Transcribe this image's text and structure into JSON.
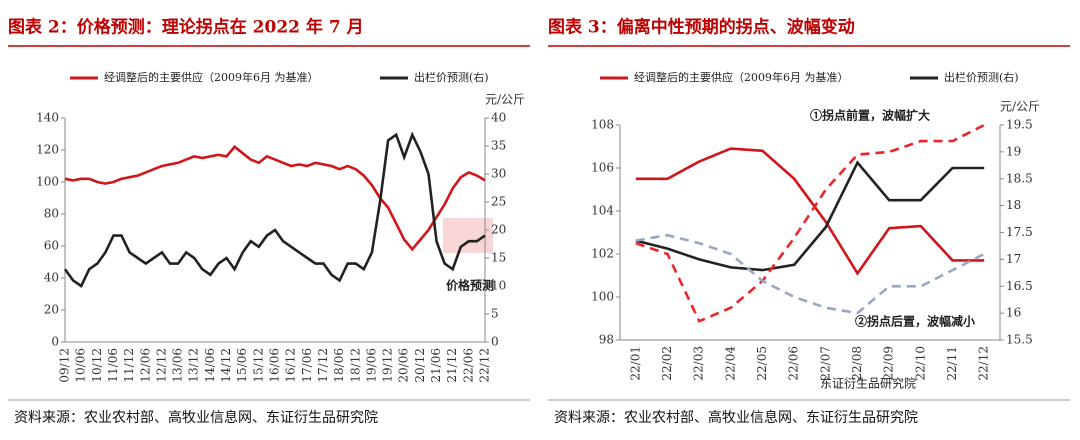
{
  "chart_data": [
    {
      "type": "line",
      "title": "图表 2：价格预测：理论拐点在 2022 年 7 月",
      "y2label": "元/公斤",
      "annotation": "价格预测",
      "source": "资料来源：农业农村部、高牧业信息网、东证衍生品研究院",
      "categories": [
        "09/12",
        null,
        "10/06",
        null,
        "10/12",
        null,
        "11/06",
        null,
        "11/12",
        null,
        "12/06",
        null,
        "12/12",
        null,
        "13/06",
        null,
        "13/12",
        null,
        "14/06",
        null,
        "14/12",
        null,
        "15/06",
        null,
        "15/12",
        null,
        "16/06",
        null,
        "16/12",
        null,
        "17/06",
        null,
        "17/12",
        null,
        "18/06",
        null,
        "18/12",
        null,
        "19/06",
        null,
        "19/12",
        null,
        "20/06",
        null,
        "20/12",
        null,
        "21/06",
        null,
        "21/12",
        null,
        "22/06",
        null,
        "22/12"
      ],
      "series": [
        {
          "name": "经调整后的主要供应（2009年6月 为基准）",
          "color": "#d0161b",
          "values": [
            102,
            101,
            102,
            102,
            100,
            99,
            100,
            102,
            103,
            104,
            106,
            108,
            110,
            111,
            112,
            114,
            116,
            115,
            116,
            117,
            116,
            122,
            118,
            114,
            112,
            116,
            114,
            112,
            110,
            111,
            110,
            112,
            111,
            110,
            108,
            110,
            108,
            104,
            98,
            90,
            84,
            74,
            64,
            58,
            64,
            70,
            78,
            86,
            96,
            103,
            106,
            104,
            101
          ]
        },
        {
          "name": "出栏价预测(右)",
          "color": "#222222",
          "axis": "y2",
          "values": [
            13,
            11,
            10,
            13,
            14,
            16,
            19,
            19,
            16,
            15,
            14,
            15,
            16,
            14,
            14,
            16,
            15,
            13,
            12,
            14,
            15,
            13,
            16,
            18,
            17,
            19,
            20,
            18,
            17,
            16,
            15,
            14,
            14,
            12,
            11,
            14,
            14,
            13,
            16,
            25,
            36,
            37,
            33,
            37,
            34,
            30,
            18,
            14,
            13,
            17,
            18,
            18,
            19
          ]
        }
      ],
      "ylim": [
        0,
        140
      ],
      "yticks": [
        0,
        20,
        40,
        60,
        80,
        100,
        120,
        140
      ],
      "y2lim": [
        0,
        40
      ],
      "y2ticks": [
        0,
        5,
        10,
        15,
        20,
        25,
        30,
        35,
        40
      ]
    },
    {
      "type": "line",
      "title": "图表 3：偏离中性预期的拐点、波幅变动",
      "y2label": "元/公斤",
      "annotations": [
        "①拐点前置，波幅扩大",
        "②拐点后置，波幅减小"
      ],
      "source": "资料来源：农业农村部、高牧业信息网、东证衍生品研究院",
      "watermark": "东证衍生品研究院",
      "categories": [
        "22/01",
        "22/02",
        "22/03",
        "22/04",
        "22/05",
        "22/06",
        "22/07",
        "22/08",
        "22/09",
        "22/10",
        "22/11",
        "22/12"
      ],
      "series": [
        {
          "name": "经调整后的主要供应（2009年6月 为基准）",
          "color": "#d0161b",
          "values": [
            105.5,
            105.5,
            106.3,
            106.9,
            106.8,
            105.5,
            103.5,
            101.1,
            103.2,
            103.3,
            101.7,
            101.7
          ]
        },
        {
          "name": "出栏价预测(右)",
          "color": "#222222",
          "axis": "y2",
          "values": [
            17.35,
            17.2,
            17.0,
            16.85,
            16.8,
            16.9,
            17.6,
            18.8,
            18.1,
            18.1,
            18.7,
            18.7
          ]
        },
        {
          "color": "#e8262b",
          "axis": "y2",
          "style": "dashed",
          "values": [
            17.3,
            17.1,
            15.85,
            16.1,
            16.6,
            17.4,
            18.3,
            18.95,
            19.0,
            19.2,
            19.2,
            19.5
          ]
        },
        {
          "color": "#9aa7c2",
          "axis": "y2",
          "style": "dashed",
          "values": [
            17.35,
            17.45,
            17.3,
            17.1,
            16.6,
            16.3,
            16.1,
            16.0,
            16.5,
            16.5,
            16.8,
            17.1
          ]
        }
      ],
      "ylim": [
        98,
        108
      ],
      "yticks": [
        98,
        100,
        102,
        104,
        106,
        108
      ],
      "y2lim": [
        15.5,
        19.5
      ],
      "y2ticks": [
        15.5,
        16,
        16.5,
        17,
        17.5,
        18,
        18.5,
        19,
        19.5
      ]
    }
  ]
}
